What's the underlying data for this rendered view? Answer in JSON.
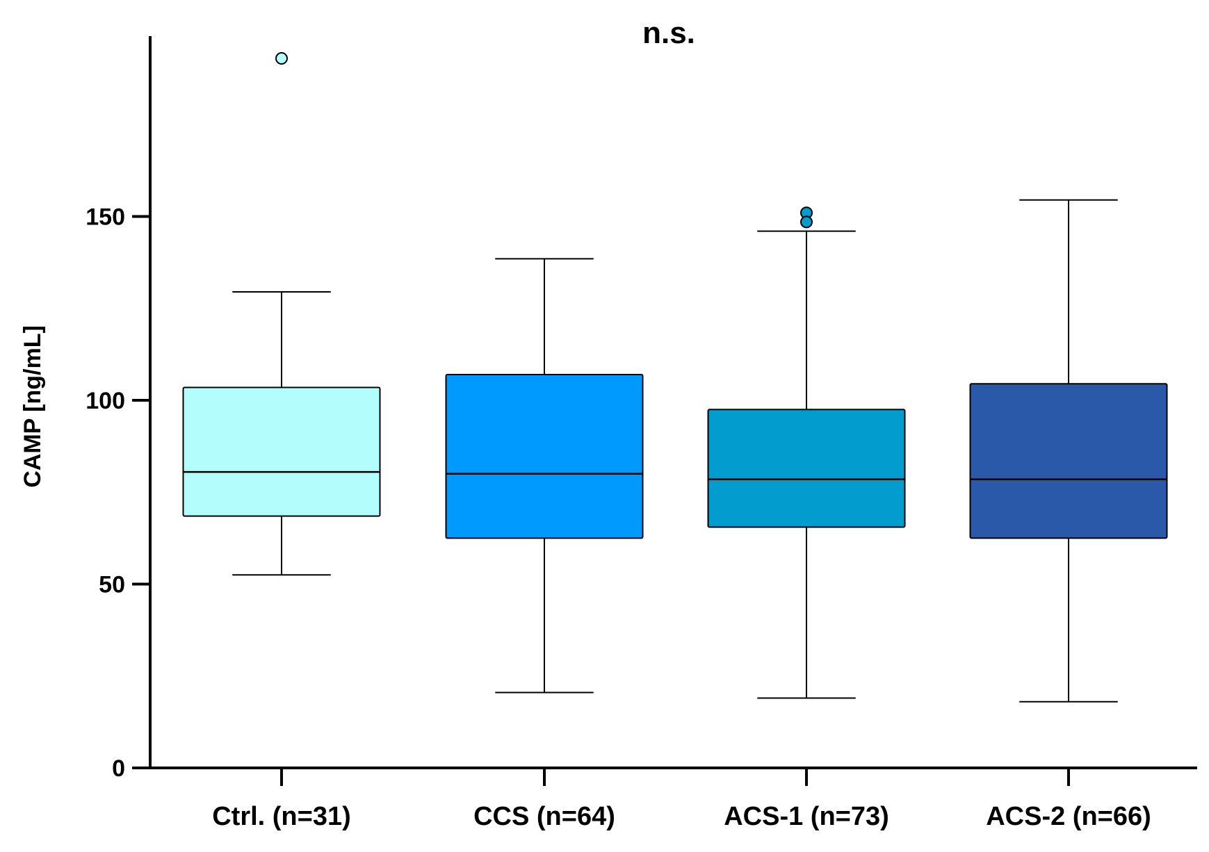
{
  "chart_data": {
    "type": "box",
    "title": "n.s.",
    "xlabel": "",
    "ylabel": "CAMP [ng/mL]",
    "ylim": [
      0,
      194
    ],
    "yticks": [
      0,
      50,
      100,
      150
    ],
    "grid": false,
    "legend": "none",
    "categories": [
      "Ctrl. (n=31)",
      "CCS (n=64)",
      "ACS-1 (n=73)",
      "ACS-2 (n=66)"
    ],
    "boxes": [
      {
        "category": "Ctrl. (n=31)",
        "whisker_low": 52.5,
        "q1": 68.5,
        "median": 80.5,
        "q3": 103.5,
        "whisker_high": 129.5,
        "outliers": [
          193
        ],
        "color": "#b3fdfc"
      },
      {
        "category": "CCS (n=64)",
        "whisker_low": 20.5,
        "q1": 62.5,
        "median": 80,
        "q3": 107,
        "whisker_high": 138.5,
        "outliers": [],
        "color": "#0099fe"
      },
      {
        "category": "ACS-1 (n=73)",
        "whisker_low": 19,
        "q1": 65.5,
        "median": 78.5,
        "q3": 97.5,
        "whisker_high": 146,
        "outliers": [
          151,
          148.5
        ],
        "color": "#039ccf"
      },
      {
        "category": "ACS-2 (n=66)",
        "whisker_low": 18,
        "q1": 62.5,
        "median": 78.5,
        "q3": 104.5,
        "whisker_high": 154.5,
        "outliers": [],
        "color": "#2a59aa"
      }
    ]
  }
}
